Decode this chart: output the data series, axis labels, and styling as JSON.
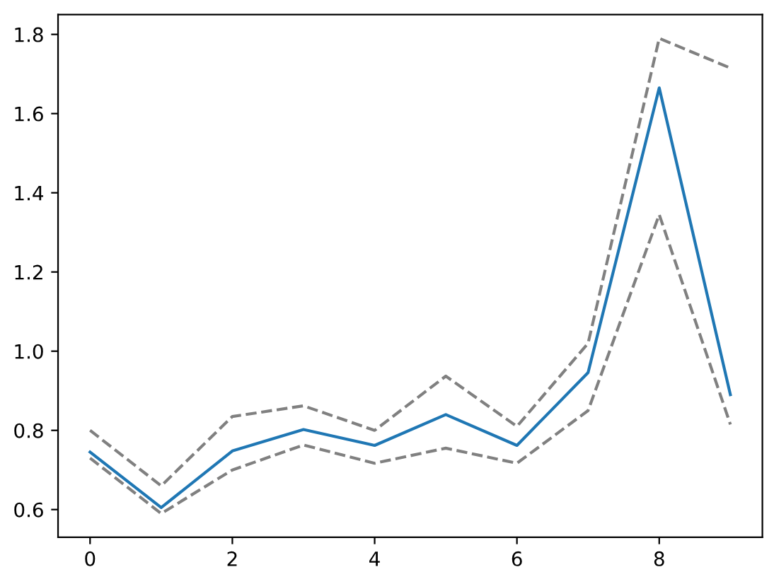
{
  "chart_data": {
    "type": "line",
    "x": [
      0,
      1,
      2,
      3,
      4,
      5,
      6,
      7,
      8,
      9
    ],
    "series": [
      {
        "color": "#1f77b4",
        "line_style": "solid",
        "values": [
          0.745,
          0.605,
          0.748,
          0.802,
          0.762,
          0.84,
          0.762,
          0.946,
          1.665,
          0.89
        ]
      },
      {
        "color": "#808080",
        "line_style": "dashed",
        "values": [
          0.8,
          0.66,
          0.835,
          0.862,
          0.8,
          0.937,
          0.81,
          1.02,
          1.79,
          1.715
        ]
      },
      {
        "color": "#808080",
        "line_style": "dashed",
        "values": [
          0.73,
          0.59,
          0.7,
          0.763,
          0.717,
          0.755,
          0.717,
          0.85,
          1.345,
          0.815
        ]
      }
    ],
    "xlim": [
      -0.45,
      9.45
    ],
    "ylim": [
      0.53,
      1.85
    ],
    "xticks": [
      0,
      2,
      4,
      6,
      8
    ],
    "yticks": [
      {
        "value": 0.6,
        "label": "0.6"
      },
      {
        "value": 0.8,
        "label": "0.8"
      },
      {
        "value": 1.0,
        "label": "1.0"
      },
      {
        "value": 1.2,
        "label": "1.2"
      },
      {
        "value": 1.4,
        "label": "1.4"
      },
      {
        "value": 1.6,
        "label": "1.6"
      },
      {
        "value": 1.8,
        "label": "1.8"
      }
    ],
    "grid": false,
    "marker": "none"
  }
}
